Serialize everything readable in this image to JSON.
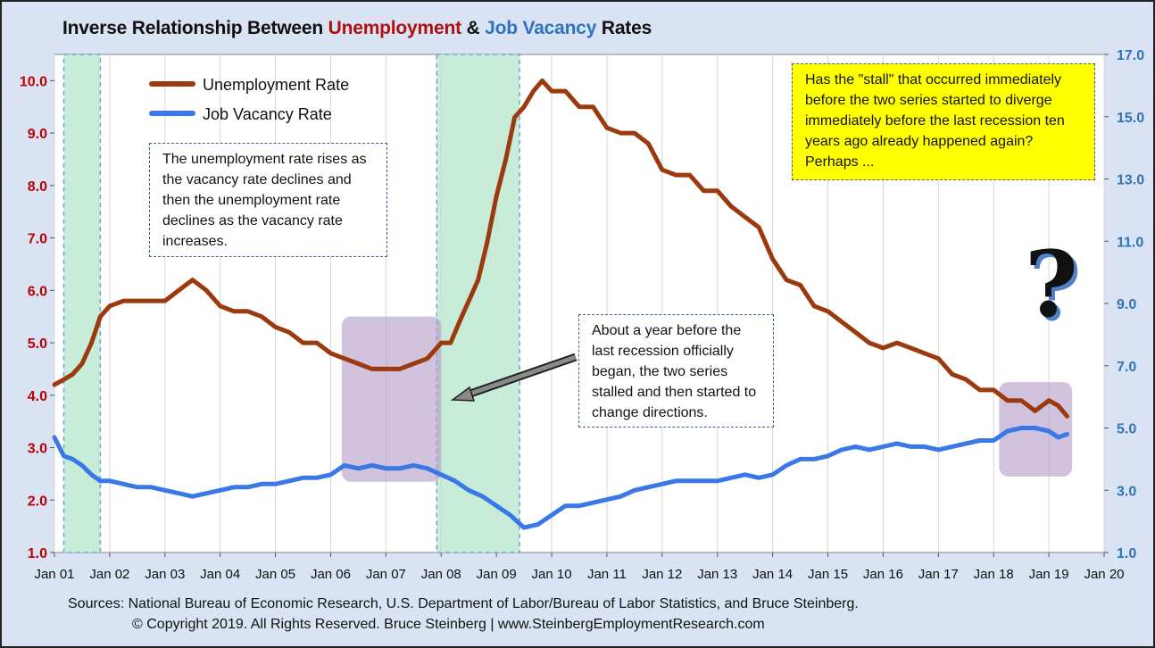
{
  "title": {
    "prefix": "Inverse Relationship Between ",
    "part1": "Unemployment",
    "mid": " & ",
    "part2": "Job Vacancy",
    "suffix": " Rates"
  },
  "colors": {
    "unemployment": "#9b3a0e",
    "vacancy": "#3b78e7",
    "recession_fill": "#c7ecd8",
    "recession_border": "#6ea3d8",
    "stall_fill": "#b49cc8",
    "left_axis_text": "#c00000",
    "right_axis_text": "#2e75b6"
  },
  "legend": {
    "unemployment": "Unemployment Rate",
    "vacancy": "Job Vacancy Rate"
  },
  "annotations": {
    "note1": "The unemployment  rate rises as the vacancy rate declines and then the unemployment rate declines  as the vacancy rate increases.",
    "note2": "About a year before the last recession officially began, the two series stalled and then started to change directions.",
    "note3": "Has the \"stall\" that occurred immediately  before the two series started to diverge immediately  before the last recession ten years ago already happened again? Perhaps ...",
    "question_mark": "?"
  },
  "footer": {
    "sources": "Sources: National Bureau of Economic Research, U.S. Department  of Labor/Bureau of Labor Statistics, and Bruce Steinberg.",
    "copyright": "© Copyright 2019. All Rights Reserved.  Bruce Steinberg  |  www.SteinbergEmploymentResearch.com"
  },
  "chart_data": {
    "type": "line",
    "title": "Inverse Relationship Between Unemployment & Job Vacancy Rates",
    "x_tick_labels": [
      "Jan 01",
      "Jan 02",
      "Jan 03",
      "Jan 04",
      "Jan 05",
      "Jan 06",
      "Jan 07",
      "Jan 08",
      "Jan 09",
      "Jan 10",
      "Jan 11",
      "Jan 12",
      "Jan 13",
      "Jan 14",
      "Jan 15",
      "Jan 16",
      "Jan 17",
      "Jan 18",
      "Jan 19",
      "Jan 20"
    ],
    "xlim": [
      2001.0,
      2020.0
    ],
    "y_left": {
      "ylim": [
        1.0,
        10.5
      ],
      "ticks": [
        "1.0",
        "2.0",
        "3.0",
        "4.0",
        "5.0",
        "6.0",
        "7.0",
        "8.0",
        "9.0",
        "10.0"
      ]
    },
    "y_right": {
      "ylim": [
        1.0,
        17.0
      ],
      "ticks": [
        "1.0",
        "3.0",
        "5.0",
        "7.0",
        "9.0",
        "11.0",
        "13.0",
        "15.0",
        "17.0"
      ]
    },
    "recessions": [
      [
        2001.17,
        2001.83
      ],
      [
        2007.92,
        2009.42
      ]
    ],
    "stall_regions": [
      {
        "x": [
          2006.2,
          2008.0
        ],
        "y_left": [
          2.35,
          5.5
        ]
      },
      {
        "x": [
          2018.1,
          2019.42
        ],
        "y_left": [
          2.45,
          4.25
        ]
      }
    ],
    "series": [
      {
        "name": "Unemployment Rate",
        "axis": "left",
        "points": [
          [
            2001.0,
            4.2
          ],
          [
            2001.17,
            4.3
          ],
          [
            2001.33,
            4.4
          ],
          [
            2001.5,
            4.6
          ],
          [
            2001.67,
            5.0
          ],
          [
            2001.83,
            5.5
          ],
          [
            2002.0,
            5.7
          ],
          [
            2002.25,
            5.8
          ],
          [
            2002.5,
            5.8
          ],
          [
            2002.75,
            5.8
          ],
          [
            2003.0,
            5.8
          ],
          [
            2003.25,
            6.0
          ],
          [
            2003.5,
            6.2
          ],
          [
            2003.75,
            6.0
          ],
          [
            2004.0,
            5.7
          ],
          [
            2004.25,
            5.6
          ],
          [
            2004.5,
            5.6
          ],
          [
            2004.75,
            5.5
          ],
          [
            2005.0,
            5.3
          ],
          [
            2005.25,
            5.2
          ],
          [
            2005.5,
            5.0
          ],
          [
            2005.75,
            5.0
          ],
          [
            2006.0,
            4.8
          ],
          [
            2006.25,
            4.7
          ],
          [
            2006.5,
            4.6
          ],
          [
            2006.75,
            4.5
          ],
          [
            2007.0,
            4.5
          ],
          [
            2007.25,
            4.5
          ],
          [
            2007.5,
            4.6
          ],
          [
            2007.75,
            4.7
          ],
          [
            2008.0,
            5.0
          ],
          [
            2008.17,
            5.0
          ],
          [
            2008.33,
            5.4
          ],
          [
            2008.5,
            5.8
          ],
          [
            2008.67,
            6.2
          ],
          [
            2008.83,
            6.9
          ],
          [
            2009.0,
            7.8
          ],
          [
            2009.17,
            8.5
          ],
          [
            2009.33,
            9.3
          ],
          [
            2009.5,
            9.5
          ],
          [
            2009.67,
            9.8
          ],
          [
            2009.83,
            10.0
          ],
          [
            2010.0,
            9.8
          ],
          [
            2010.25,
            9.8
          ],
          [
            2010.5,
            9.5
          ],
          [
            2010.75,
            9.5
          ],
          [
            2011.0,
            9.1
          ],
          [
            2011.25,
            9.0
          ],
          [
            2011.5,
            9.0
          ],
          [
            2011.75,
            8.8
          ],
          [
            2012.0,
            8.3
          ],
          [
            2012.25,
            8.2
          ],
          [
            2012.5,
            8.2
          ],
          [
            2012.75,
            7.9
          ],
          [
            2013.0,
            7.9
          ],
          [
            2013.25,
            7.6
          ],
          [
            2013.5,
            7.4
          ],
          [
            2013.75,
            7.2
          ],
          [
            2014.0,
            6.6
          ],
          [
            2014.25,
            6.2
          ],
          [
            2014.5,
            6.1
          ],
          [
            2014.75,
            5.7
          ],
          [
            2015.0,
            5.6
          ],
          [
            2015.25,
            5.4
          ],
          [
            2015.5,
            5.2
          ],
          [
            2015.75,
            5.0
          ],
          [
            2016.0,
            4.9
          ],
          [
            2016.25,
            5.0
          ],
          [
            2016.5,
            4.9
          ],
          [
            2016.75,
            4.8
          ],
          [
            2017.0,
            4.7
          ],
          [
            2017.25,
            4.4
          ],
          [
            2017.5,
            4.3
          ],
          [
            2017.75,
            4.1
          ],
          [
            2018.0,
            4.1
          ],
          [
            2018.25,
            3.9
          ],
          [
            2018.5,
            3.9
          ],
          [
            2018.75,
            3.7
          ],
          [
            2019.0,
            3.9
          ],
          [
            2019.17,
            3.8
          ],
          [
            2019.33,
            3.6
          ]
        ]
      },
      {
        "name": "Job Vacancy Rate",
        "axis": "right",
        "points": [
          [
            2001.0,
            4.7
          ],
          [
            2001.17,
            4.1
          ],
          [
            2001.33,
            4.0
          ],
          [
            2001.5,
            3.8
          ],
          [
            2001.67,
            3.5
          ],
          [
            2001.83,
            3.3
          ],
          [
            2002.0,
            3.3
          ],
          [
            2002.25,
            3.2
          ],
          [
            2002.5,
            3.1
          ],
          [
            2002.75,
            3.1
          ],
          [
            2003.0,
            3.0
          ],
          [
            2003.25,
            2.9
          ],
          [
            2003.5,
            2.8
          ],
          [
            2003.75,
            2.9
          ],
          [
            2004.0,
            3.0
          ],
          [
            2004.25,
            3.1
          ],
          [
            2004.5,
            3.1
          ],
          [
            2004.75,
            3.2
          ],
          [
            2005.0,
            3.2
          ],
          [
            2005.25,
            3.3
          ],
          [
            2005.5,
            3.4
          ],
          [
            2005.75,
            3.4
          ],
          [
            2006.0,
            3.5
          ],
          [
            2006.25,
            3.8
          ],
          [
            2006.5,
            3.7
          ],
          [
            2006.75,
            3.8
          ],
          [
            2007.0,
            3.7
          ],
          [
            2007.25,
            3.7
          ],
          [
            2007.5,
            3.8
          ],
          [
            2007.75,
            3.7
          ],
          [
            2008.0,
            3.5
          ],
          [
            2008.25,
            3.3
          ],
          [
            2008.5,
            3.0
          ],
          [
            2008.75,
            2.8
          ],
          [
            2009.0,
            2.5
          ],
          [
            2009.25,
            2.2
          ],
          [
            2009.5,
            1.8
          ],
          [
            2009.75,
            1.9
          ],
          [
            2010.0,
            2.2
          ],
          [
            2010.25,
            2.5
          ],
          [
            2010.5,
            2.5
          ],
          [
            2010.75,
            2.6
          ],
          [
            2011.0,
            2.7
          ],
          [
            2011.25,
            2.8
          ],
          [
            2011.5,
            3.0
          ],
          [
            2011.75,
            3.1
          ],
          [
            2012.0,
            3.2
          ],
          [
            2012.25,
            3.3
          ],
          [
            2012.5,
            3.3
          ],
          [
            2012.75,
            3.3
          ],
          [
            2013.0,
            3.3
          ],
          [
            2013.25,
            3.4
          ],
          [
            2013.5,
            3.5
          ],
          [
            2013.75,
            3.4
          ],
          [
            2014.0,
            3.5
          ],
          [
            2014.25,
            3.8
          ],
          [
            2014.5,
            4.0
          ],
          [
            2014.75,
            4.0
          ],
          [
            2015.0,
            4.1
          ],
          [
            2015.25,
            4.3
          ],
          [
            2015.5,
            4.4
          ],
          [
            2015.75,
            4.3
          ],
          [
            2016.0,
            4.4
          ],
          [
            2016.25,
            4.5
          ],
          [
            2016.5,
            4.4
          ],
          [
            2016.75,
            4.4
          ],
          [
            2017.0,
            4.3
          ],
          [
            2017.25,
            4.4
          ],
          [
            2017.5,
            4.5
          ],
          [
            2017.75,
            4.6
          ],
          [
            2018.0,
            4.6
          ],
          [
            2018.25,
            4.9
          ],
          [
            2018.5,
            5.0
          ],
          [
            2018.75,
            5.0
          ],
          [
            2019.0,
            4.9
          ],
          [
            2019.17,
            4.7
          ],
          [
            2019.33,
            4.8
          ]
        ]
      }
    ]
  }
}
